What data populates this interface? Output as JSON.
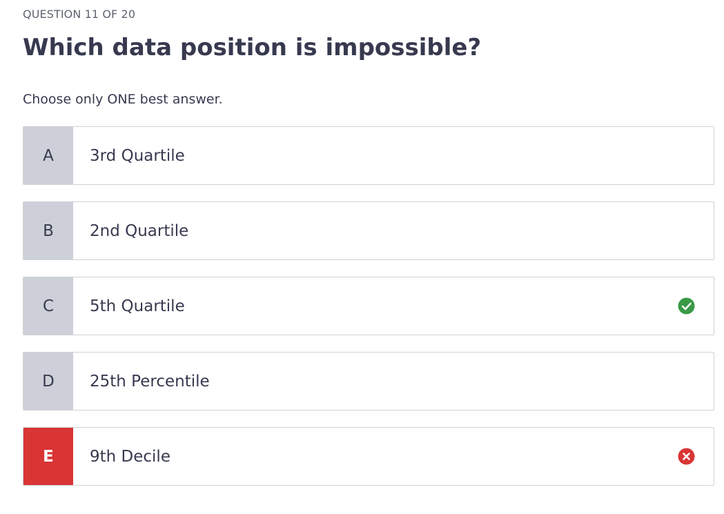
{
  "header": {
    "counter": "QUESTION 11 OF 20",
    "question": "Which data position is impossible?",
    "instruction": "Choose only ONE best answer."
  },
  "options": [
    {
      "letter": "A",
      "label": "3rd Quartile",
      "status": "none"
    },
    {
      "letter": "B",
      "label": "2nd Quartile",
      "status": "none"
    },
    {
      "letter": "C",
      "label": "5th Quartile",
      "status": "correct",
      "icon": "check-circle-icon"
    },
    {
      "letter": "D",
      "label": "25th Percentile",
      "status": "none"
    },
    {
      "letter": "E",
      "label": "9th Decile",
      "status": "incorrect-selected",
      "icon": "x-circle-icon"
    }
  ],
  "colors": {
    "correct": "#3a9a47",
    "incorrect": "#d93535",
    "letter_bg": "#cdd0d8"
  }
}
